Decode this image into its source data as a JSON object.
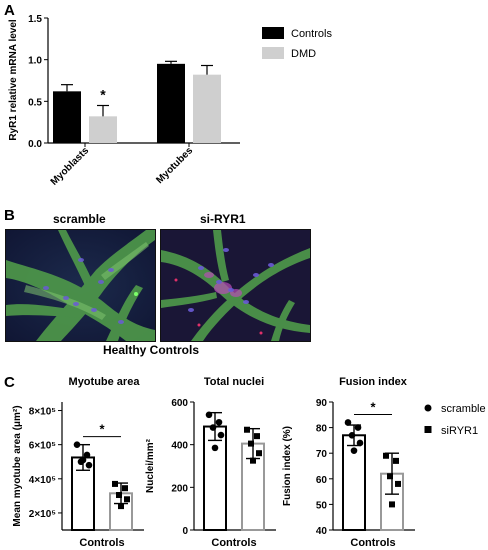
{
  "panels": {
    "a": "A",
    "b": "B",
    "c": "C"
  },
  "chart_data": [
    {
      "type": "bar",
      "ylabel": "RyR1 relative mRNA level",
      "categories": [
        "Myoblasts",
        "Myotubes"
      ],
      "ylim": [
        0,
        1.5
      ],
      "yticks": [
        0.0,
        0.5,
        1.0,
        1.5
      ],
      "ytick_labels": [
        "0.0",
        "0.5",
        "1.0",
        "1.5"
      ],
      "series": [
        {
          "name": "Controls",
          "color": "#000000",
          "values": [
            0.62,
            0.95
          ],
          "errors": [
            0.08,
            0.03
          ]
        },
        {
          "name": "DMD",
          "color": "#cfcfcf",
          "values": [
            0.32,
            0.82
          ],
          "errors": [
            0.13,
            0.11
          ]
        }
      ],
      "annotations": [
        {
          "text": "*",
          "category": "Myoblasts",
          "series": "DMD"
        }
      ]
    },
    {
      "type": "bar",
      "title": "Myotube area",
      "ylabel": "Mean myotube area (μm²)",
      "xlabel": "Controls",
      "ylim": [
        100000,
        850000
      ],
      "yticks": [
        200000,
        400000,
        600000,
        800000
      ],
      "ytick_labels": [
        "2×10⁵",
        "4×10⁵",
        "6×10⁵",
        "8×10⁵"
      ],
      "significance": "*",
      "series": [
        {
          "name": "scramble",
          "marker": "circle",
          "bar_color": "#000000",
          "value": 525000,
          "error": 75000,
          "points": [
            600000,
            540000,
            500000,
            480000,
            510000
          ]
        },
        {
          "name": "siRYR1",
          "marker": "square",
          "bar_color": "#999999",
          "value": 315000,
          "error": 60000,
          "points": [
            370000,
            345000,
            305000,
            280000,
            240000
          ]
        }
      ]
    },
    {
      "type": "bar",
      "title": "Total nuclei",
      "ylabel": "Nuclei/mm²",
      "xlabel": "Controls",
      "ylim": [
        0,
        600
      ],
      "yticks": [
        0,
        200,
        400,
        600
      ],
      "ytick_labels": [
        "0",
        "200",
        "400",
        "600"
      ],
      "series": [
        {
          "name": "scramble",
          "marker": "circle",
          "bar_color": "#000000",
          "value": 485,
          "error": 65,
          "points": [
            540,
            505,
            480,
            445,
            385
          ]
        },
        {
          "name": "siRYR1",
          "marker": "square",
          "bar_color": "#999999",
          "value": 405,
          "error": 70,
          "points": [
            470,
            440,
            405,
            360,
            325
          ]
        }
      ]
    },
    {
      "type": "bar",
      "title": "Fusion index",
      "ylabel": "Fusion index (%)",
      "xlabel": "Controls",
      "ylim": [
        40,
        90
      ],
      "yticks": [
        40,
        50,
        60,
        70,
        80,
        90
      ],
      "ytick_labels": [
        "40",
        "50",
        "60",
        "70",
        "80",
        "90"
      ],
      "significance": "*",
      "series": [
        {
          "name": "scramble",
          "marker": "circle",
          "bar_color": "#000000",
          "value": 77,
          "error": 4,
          "points": [
            82,
            80,
            77,
            74,
            71
          ]
        },
        {
          "name": "siRYR1",
          "marker": "square",
          "bar_color": "#999999",
          "value": 62,
          "error": 8,
          "points": [
            69,
            67,
            61,
            58,
            50
          ]
        }
      ]
    }
  ],
  "panel_b": {
    "labels": [
      "scramble",
      "si-RYR1"
    ],
    "caption": "Healthy Controls"
  },
  "legend_c": [
    "scramble",
    "siRYR1"
  ]
}
